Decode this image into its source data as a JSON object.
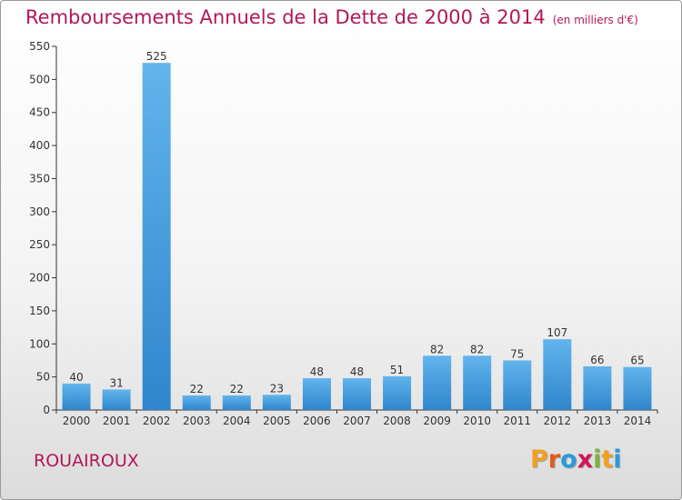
{
  "title": "Remboursements Annuels de la Dette de 2000 à 2014",
  "unit": "(en milliers d'€)",
  "commune": "ROUAIROUX",
  "logo": {
    "letters": [
      "P",
      "r",
      "o",
      "x",
      "i",
      "t",
      "i"
    ],
    "colors": [
      "#f0a020",
      "#e05a20",
      "#2a9ad8",
      "#d4145a",
      "#7cb342",
      "#f0a020",
      "#2a9ad8"
    ]
  },
  "chart_data": {
    "type": "bar",
    "categories": [
      "2000",
      "2001",
      "2002",
      "2003",
      "2004",
      "2005",
      "2006",
      "2007",
      "2008",
      "2009",
      "2010",
      "2011",
      "2012",
      "2013",
      "2014"
    ],
    "values": [
      40,
      31,
      525,
      22,
      22,
      23,
      48,
      48,
      51,
      82,
      82,
      75,
      107,
      66,
      65
    ],
    "title": "Remboursements Annuels de la Dette de 2000 à 2014",
    "xlabel": "",
    "ylabel": "",
    "ylim": [
      0,
      550
    ],
    "yticks": [
      0,
      50,
      100,
      150,
      200,
      250,
      300,
      350,
      400,
      450,
      500,
      550
    ],
    "grid": false,
    "bar_color": "#4ba3e3"
  }
}
